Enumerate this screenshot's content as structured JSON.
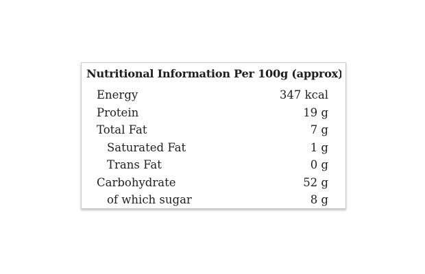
{
  "table": {
    "title": "Nutritional Information Per 100g (approx).",
    "rows": [
      {
        "label": "Energy",
        "value": "347 kcal",
        "indent": false
      },
      {
        "label": "Protein",
        "value": "19 g",
        "indent": false
      },
      {
        "label": "Total Fat",
        "value": "7 g",
        "indent": false
      },
      {
        "label": "Saturated Fat",
        "value": "1 g",
        "indent": true
      },
      {
        "label": "Trans Fat",
        "value": "0 g",
        "indent": true
      },
      {
        "label": "Carbohydrate",
        "value": "52 g",
        "indent": false
      },
      {
        "label": "of which sugar",
        "value": "8 g",
        "indent": true
      }
    ]
  },
  "colors": {
    "background": "#ffffff",
    "text": "#1f1f1f",
    "border": "#c9c9c9"
  }
}
